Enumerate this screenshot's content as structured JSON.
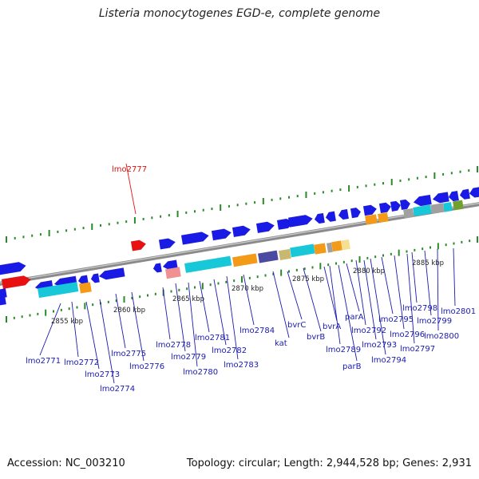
{
  "title": "Listeria monocytogenes EGD-e, complete genome",
  "footer": {
    "accession": "Accession: NC_003210",
    "topology": "Topology: circular; Length: 2,944,528 bp; Genes: 2,931"
  },
  "colors": {
    "blue": "#1a1ae6",
    "red": "#e81010",
    "cyan": "#18c8d8",
    "orange": "#f39a18",
    "navy": "#4a4aa0",
    "khaki": "#c8b870",
    "gray": "#a0a0a0",
    "pink": "#f09090",
    "olive": "#70a030",
    "yellow": "#f4e090",
    "backbone": "#8a8a8a",
    "tick": "#2a8a2a"
  },
  "scale_labels": [
    "2855 kbp",
    "2860 kbp",
    "2865 kbp",
    "2870 kbp",
    "2875 kbp",
    "2880 kbp",
    "2885 kbp"
  ],
  "gene_labels": [
    {
      "text": "lmo2777",
      "color": "red"
    },
    {
      "text": "lmo2771",
      "color": "blue"
    },
    {
      "text": "lmo2772",
      "color": "blue"
    },
    {
      "text": "lmo2773",
      "color": "blue"
    },
    {
      "text": "lmo2774",
      "color": "blue"
    },
    {
      "text": "lmo2775",
      "color": "blue"
    },
    {
      "text": "lmo2776",
      "color": "blue"
    },
    {
      "text": "lmo2778",
      "color": "blue"
    },
    {
      "text": "lmo2779",
      "color": "blue"
    },
    {
      "text": "lmo2780",
      "color": "blue"
    },
    {
      "text": "lmo2781",
      "color": "blue"
    },
    {
      "text": "lmo2782",
      "color": "blue"
    },
    {
      "text": "lmo2783",
      "color": "blue"
    },
    {
      "text": "lmo2784",
      "color": "blue"
    },
    {
      "text": "kat",
      "color": "blue"
    },
    {
      "text": "bvrC",
      "color": "blue"
    },
    {
      "text": "bvrB",
      "color": "blue"
    },
    {
      "text": "bvrA",
      "color": "blue"
    },
    {
      "text": "lmo2789",
      "color": "blue"
    },
    {
      "text": "parB",
      "color": "blue"
    },
    {
      "text": "parA",
      "color": "blue"
    },
    {
      "text": "lmo2792",
      "color": "blue"
    },
    {
      "text": "lmo2793",
      "color": "blue"
    },
    {
      "text": "lmo2794",
      "color": "blue"
    },
    {
      "text": "lmo2795",
      "color": "blue"
    },
    {
      "text": "lmo2796",
      "color": "blue"
    },
    {
      "text": "lmo2797",
      "color": "blue"
    },
    {
      "text": "lmo2798",
      "color": "blue"
    },
    {
      "text": "lmo2799",
      "color": "blue"
    },
    {
      "text": "lmo2800",
      "color": "blue"
    },
    {
      "text": "lmo2801",
      "color": "blue"
    }
  ],
  "features": {
    "forward_outer": [
      "blue",
      "red",
      "blue",
      "blue",
      "blue",
      "blue",
      "blue",
      "blue",
      "blue",
      "blue",
      "blue",
      "blue",
      "blue",
      "blue",
      "blue",
      "blue",
      "blue",
      "blue",
      "blue",
      "blue",
      "blue",
      "blue",
      "blue",
      "blue",
      "blue"
    ],
    "forward_inner": [
      "red",
      "orange",
      "orange",
      "gray",
      "cyan",
      "gray",
      "cyan",
      "olive"
    ],
    "reverse": [
      "blue",
      "blue",
      "blue",
      "blue",
      "blue",
      "blue",
      "blue",
      "blue",
      "blue",
      "blue",
      "blue",
      "blue",
      "blue",
      "blue",
      "blue",
      "blue",
      "blue",
      "blue",
      "blue",
      "blue"
    ],
    "rna_band": [
      "cyan",
      "orange",
      "pink",
      "cyan",
      "orange",
      "navy",
      "khaki",
      "cyan",
      "orange",
      "gray",
      "orange",
      "yellow"
    ]
  }
}
